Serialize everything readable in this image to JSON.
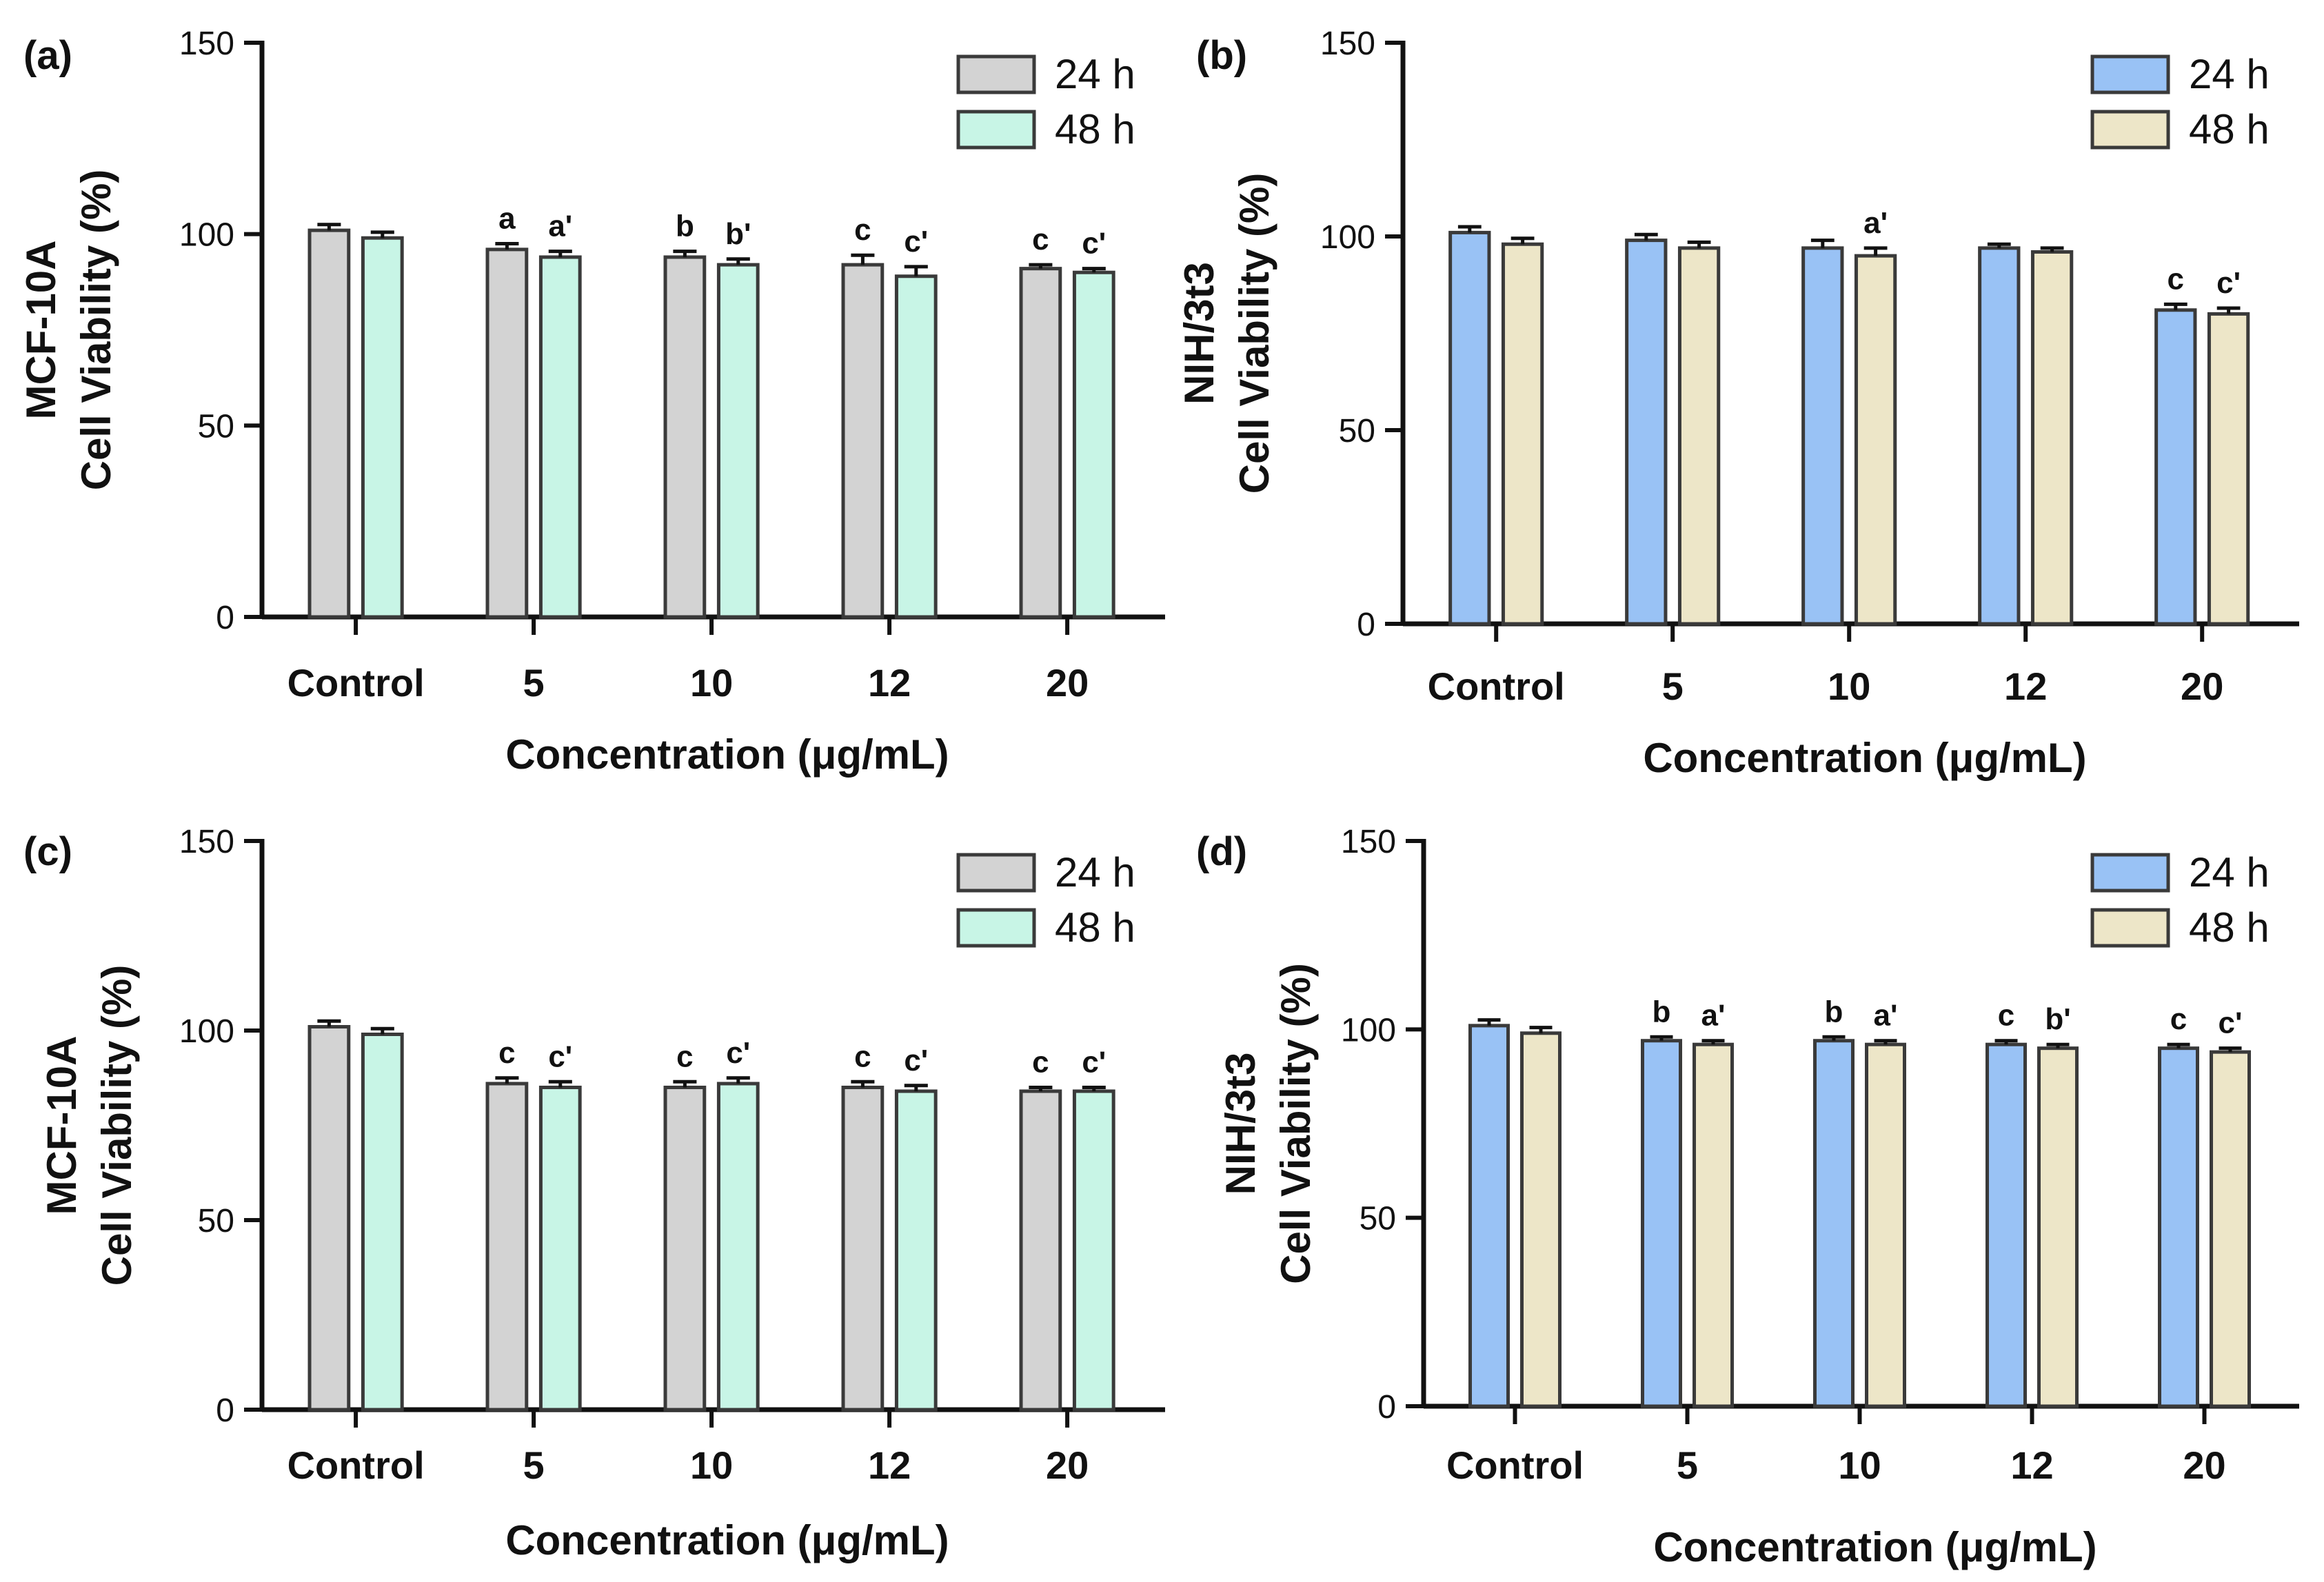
{
  "chart_data": [
    {
      "panel": "(a)",
      "type": "bar",
      "ylabel_line1": "MCF-10A",
      "ylabel_line2": "Cell Viability (%)",
      "xlabel": "Concentration (μg/mL)",
      "categories": [
        "Control",
        "5",
        "10",
        "12",
        "20"
      ],
      "ylim": [
        0,
        150
      ],
      "yticks": [
        "0",
        "50",
        "100",
        "150"
      ],
      "legend_position": "top-right",
      "colors": [
        "#d3d3d3",
        "#c8f5e6"
      ],
      "series": [
        {
          "name": "24 h",
          "values": [
            101,
            96,
            94,
            92,
            91
          ],
          "errors": [
            1.5,
            1.5,
            1.5,
            2.5,
            1.0
          ],
          "labels": [
            "",
            "a",
            "b",
            "c",
            "c"
          ]
        },
        {
          "name": "48 h",
          "values": [
            99,
            94,
            92,
            89,
            90
          ],
          "errors": [
            1.5,
            1.5,
            1.5,
            2.5,
            1.0
          ],
          "labels": [
            "",
            "a'",
            "b'",
            "c'",
            "c'"
          ]
        }
      ]
    },
    {
      "panel": "(b)",
      "type": "bar",
      "ylabel_line1": "NIH/3t3",
      "ylabel_line2": "Cell Viability (%)",
      "xlabel": "Concentration (μg/mL)",
      "categories": [
        "Control",
        "5",
        "10",
        "12",
        "20"
      ],
      "ylim": [
        0,
        150
      ],
      "yticks": [
        "0",
        "50",
        "100",
        "150"
      ],
      "legend_position": "top-right",
      "colors": [
        "#99c2f5",
        "#ede6c8"
      ],
      "series": [
        {
          "name": "24 h",
          "values": [
            101,
            99,
            97,
            97,
            81
          ],
          "errors": [
            1.5,
            1.5,
            2.0,
            1.0,
            1.5
          ],
          "labels": [
            "",
            "",
            "",
            "",
            "c"
          ]
        },
        {
          "name": "48 h",
          "values": [
            98,
            97,
            95,
            96,
            80
          ],
          "errors": [
            1.5,
            1.5,
            2.0,
            1.0,
            1.5
          ],
          "labels": [
            "",
            "",
            "a'",
            "",
            "c'"
          ]
        }
      ]
    },
    {
      "panel": "(c)",
      "type": "bar",
      "ylabel_line1": "MCF-10A",
      "ylabel_line2": "Cell Viability (%)",
      "xlabel": "Concentration (μg/mL)",
      "categories": [
        "Control",
        "5",
        "10",
        "12",
        "20"
      ],
      "ylim": [
        0,
        150
      ],
      "yticks": [
        "0",
        "50",
        "100",
        "150"
      ],
      "legend_position": "top-right",
      "colors": [
        "#d3d3d3",
        "#c8f5e6"
      ],
      "series": [
        {
          "name": "24 h",
          "values": [
            101,
            86,
            85,
            85,
            84
          ],
          "errors": [
            1.5,
            1.5,
            1.5,
            1.5,
            1.0
          ],
          "labels": [
            "",
            "c",
            "c",
            "c",
            "c"
          ]
        },
        {
          "name": "48 h",
          "values": [
            99,
            85,
            86,
            84,
            84
          ],
          "errors": [
            1.5,
            1.5,
            1.5,
            1.5,
            1.0
          ],
          "labels": [
            "",
            "c'",
            "c'",
            "c'",
            "c'"
          ]
        }
      ]
    },
    {
      "panel": "(d)",
      "type": "bar",
      "ylabel_line1": "NIH/3t3",
      "ylabel_line2": "Cell Viability (%)",
      "xlabel": "Concentration (μg/mL)",
      "categories": [
        "Control",
        "5",
        "10",
        "12",
        "20"
      ],
      "ylim": [
        0,
        150
      ],
      "yticks": [
        "0",
        "50",
        "100",
        "150"
      ],
      "legend_position": "top-right",
      "colors": [
        "#99c2f5",
        "#ede6c8"
      ],
      "series": [
        {
          "name": "24 h",
          "values": [
            101,
            97,
            97,
            96,
            95
          ],
          "errors": [
            1.5,
            1.0,
            1.0,
            1.0,
            1.0
          ],
          "labels": [
            "",
            "b",
            "b",
            "c",
            "c"
          ]
        },
        {
          "name": "48 h",
          "values": [
            99,
            96,
            96,
            95,
            94
          ],
          "errors": [
            1.5,
            1.0,
            1.0,
            1.0,
            1.0
          ],
          "labels": [
            "",
            "a'",
            "a'",
            "b'",
            "c'"
          ]
        }
      ]
    }
  ]
}
